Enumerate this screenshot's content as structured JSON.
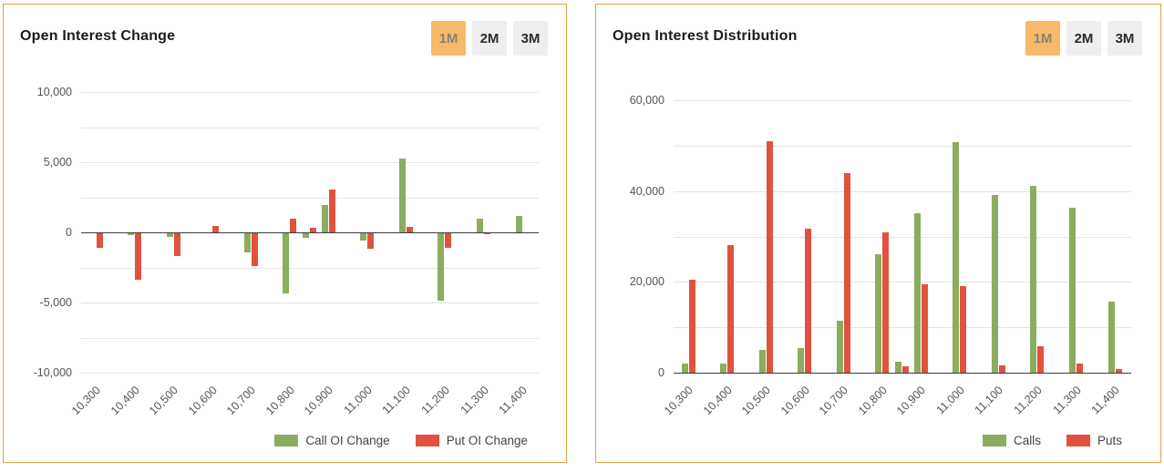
{
  "panels": [
    {
      "title": "Open Interest Change",
      "buttons": [
        {
          "label": "1M",
          "active": true
        },
        {
          "label": "2M",
          "active": false
        },
        {
          "label": "3M",
          "active": false
        }
      ],
      "legend": [
        "Call OI Change",
        "Put OI Change"
      ]
    },
    {
      "title": "Open Interest Distribution",
      "buttons": [
        {
          "label": "1M",
          "active": true
        },
        {
          "label": "2M",
          "active": false
        },
        {
          "label": "3M",
          "active": false
        }
      ],
      "legend": [
        "Calls",
        "Puts"
      ]
    }
  ],
  "colors": {
    "call_green": "#8CAC60",
    "put_red": "#E0523F",
    "active_button_bg": "#F6BA69",
    "panel_border": "#E5A044",
    "grid": "#E4E4E4",
    "axis": "#3C3C3C"
  },
  "chart_data": [
    {
      "type": "bar",
      "title": "Open Interest Change",
      "x": [
        10300,
        10400,
        10500,
        10600,
        10700,
        10800,
        10850,
        10900,
        11000,
        11100,
        11200,
        11300,
        11400
      ],
      "x_tick_labels": [
        "10,300",
        "10,400",
        "10,500",
        "10,600",
        "10,700",
        "10,800",
        "10,900",
        "11,000",
        "11,100",
        "11,200",
        "11,300",
        "11,400"
      ],
      "series": [
        {
          "name": "Call OI Change",
          "color": "#8CAC60",
          "values": [
            0,
            -200,
            -300,
            0,
            -1400,
            -4350,
            -400,
            1950,
            -600,
            5250,
            -4850,
            950,
            1200
          ]
        },
        {
          "name": "Put OI Change",
          "color": "#E0523F",
          "values": [
            -1100,
            -3400,
            -1700,
            450,
            -2400,
            950,
            350,
            3050,
            -1200,
            400,
            -1100,
            -150,
            0
          ]
        }
      ],
      "ylim": [
        -10000,
        10000
      ],
      "y_ticks": [
        -10000,
        -5000,
        0,
        5000,
        10000
      ],
      "y_tick_labels": [
        "-10,000",
        "-5,000",
        "0",
        "5,000",
        "10,000"
      ],
      "grid_step": 2500,
      "zero_axis": 0,
      "legend_position": "bottom-right",
      "grid": true
    },
    {
      "type": "bar",
      "title": "Open Interest Distribution",
      "x": [
        10300,
        10400,
        10500,
        10600,
        10700,
        10800,
        10850,
        10900,
        11000,
        11100,
        11200,
        11300,
        11400
      ],
      "x_tick_labels": [
        "10,300",
        "10,400",
        "10,500",
        "10,600",
        "10,700",
        "10,800",
        "10,900",
        "11,000",
        "11,100",
        "11,200",
        "11,300",
        "11,400"
      ],
      "series": [
        {
          "name": "Calls",
          "color": "#8CAC60",
          "values": [
            2100,
            2100,
            5100,
            5400,
            11500,
            26000,
            2400,
            35200,
            50800,
            39200,
            41200,
            36400,
            15700
          ]
        },
        {
          "name": "Puts",
          "color": "#E0523F",
          "values": [
            20500,
            28000,
            51000,
            31700,
            44000,
            31000,
            1500,
            19400,
            19000,
            1600,
            5900,
            2100,
            800
          ]
        }
      ],
      "ylim": [
        0,
        60000
      ],
      "y_ticks": [
        0,
        20000,
        40000,
        60000
      ],
      "y_tick_labels": [
        "0",
        "20,000",
        "40,000",
        "60,000"
      ],
      "grid_step": 10000,
      "zero_axis": 0,
      "legend_position": "bottom-right",
      "grid": true
    }
  ]
}
